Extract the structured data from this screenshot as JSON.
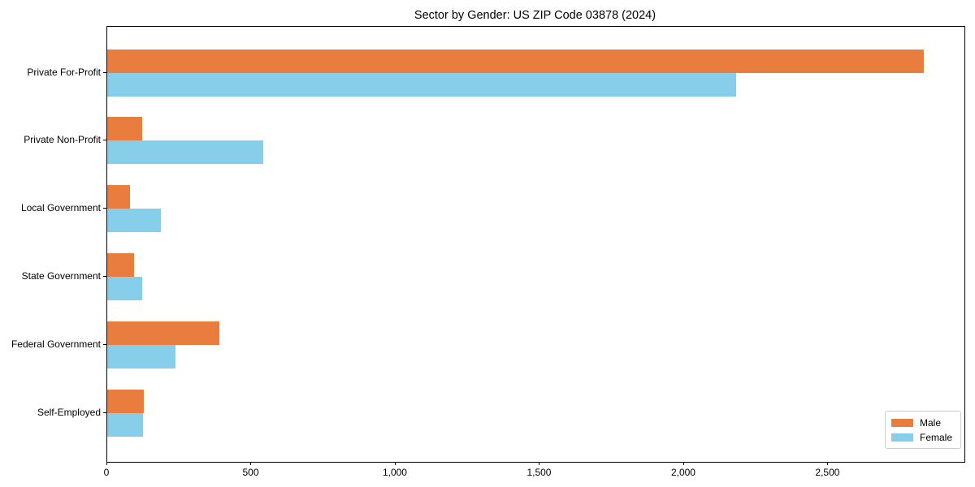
{
  "title": "Sector by Gender: US ZIP Code 03878 (2024)",
  "colors": {
    "male": "#e87d3e",
    "female": "#87ceeb",
    "spine": "#000000",
    "legend_border": "#cccccc",
    "text": "#000000",
    "background": "#ffffff"
  },
  "chart_data": {
    "type": "bar",
    "orientation": "horizontal",
    "title": "Sector by Gender: US ZIP Code 03878 (2024)",
    "categories": [
      "Private For-Profit",
      "Private Non-Profit",
      "Local Government",
      "State Government",
      "Federal Government",
      "Self-Employed"
    ],
    "series": [
      {
        "name": "Male",
        "color": "#e87d3e",
        "values": [
          2830,
          120,
          79,
          92,
          388,
          128
        ]
      },
      {
        "name": "Female",
        "color": "#87ceeb",
        "values": [
          2180,
          542,
          187,
          122,
          238,
          123
        ]
      }
    ],
    "xlabel": "",
    "ylabel": "",
    "xlim": [
      0,
      2972
    ],
    "xticks": [
      0,
      500,
      1000,
      1500,
      2000,
      2500
    ],
    "xtick_labels": [
      "0",
      "500",
      "1,000",
      "1,500",
      "2,000",
      "2,500"
    ],
    "legend": {
      "position": "lower-right",
      "items": [
        "Male",
        "Female"
      ]
    },
    "grid": false
  }
}
